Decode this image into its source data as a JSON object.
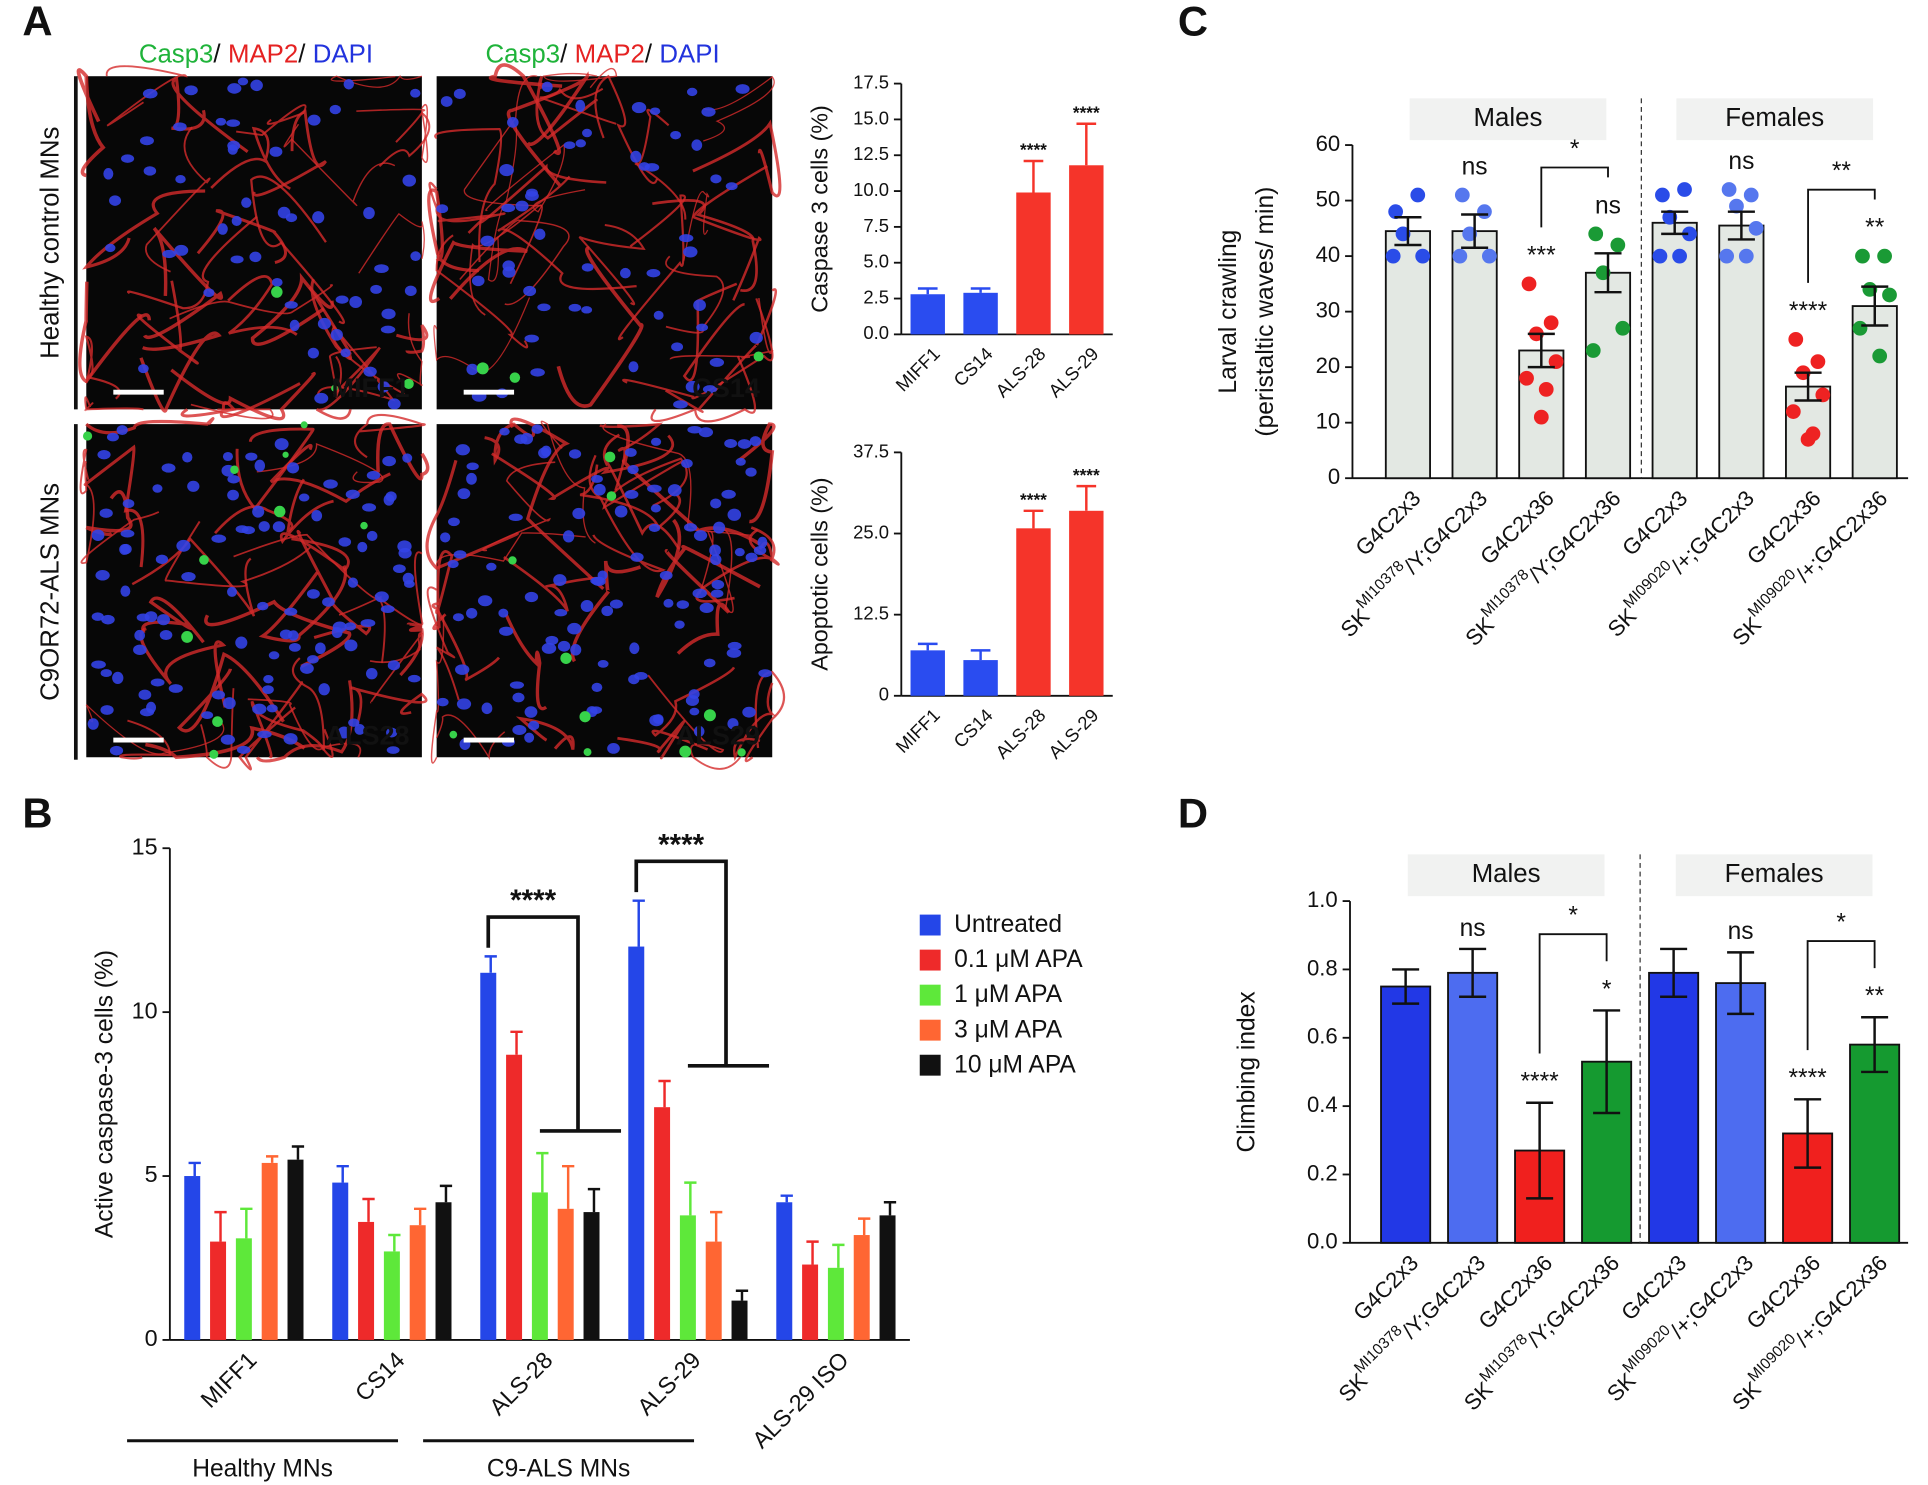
{
  "panel_labels": [
    "A",
    "B",
    "C",
    "D"
  ],
  "micrographs": {
    "stain_header": [
      {
        "text": "Casp3",
        "color": "#1fb33a"
      },
      {
        "text": "/",
        "color": "#111111"
      },
      {
        "text": "MAP2",
        "color": "#e52222"
      },
      {
        "text": "/",
        "color": "#111111"
      },
      {
        "text": "DAPI",
        "color": "#2233dd"
      }
    ],
    "rows": [
      "Healthy control MNs",
      "C9OR72-ALS MNs"
    ],
    "samples": [
      "MIFF1",
      "CS14",
      "ALS28",
      "ALS29"
    ]
  },
  "chart_data": [
    {
      "type": "bar",
      "y_label": "Caspase 3 cells (%)",
      "categories": [
        "MIFF1",
        "CS14",
        "ALS-28",
        "ALS-29"
      ],
      "values": [
        2.8,
        2.9,
        9.9,
        11.8
      ],
      "errors": [
        0.4,
        0.3,
        2.2,
        2.9
      ],
      "error_direction": "up",
      "colors": [
        "#2a4cf0",
        "#2a4cf0",
        "#f5342a",
        "#f5342a"
      ],
      "sig_labels": [
        null,
        null,
        "****",
        "****"
      ],
      "ylim": [
        0,
        17.5
      ],
      "yticks": [
        {
          "value": 0,
          "label": "0.0"
        },
        2.5,
        {
          "value": 5,
          "label": "5.0"
        },
        7.5,
        {
          "value": 10,
          "label": "10.0"
        },
        12.5,
        {
          "value": 15,
          "label": "15.0"
        },
        17.5
      ]
    },
    {
      "type": "bar",
      "y_label": "Apoptotic cells (%)",
      "categories": [
        "MIFF1",
        "CS14",
        "ALS-28",
        "ALS-29"
      ],
      "values": [
        7.0,
        5.5,
        25.8,
        28.5
      ],
      "errors": [
        1.0,
        1.5,
        2.7,
        3.8
      ],
      "error_direction": "up",
      "colors": [
        "#2a4cf0",
        "#2a4cf0",
        "#f5342a",
        "#f5342a"
      ],
      "sig_labels": [
        null,
        null,
        "****",
        "****"
      ],
      "ylim": [
        0,
        37.5
      ],
      "yticks": [
        0,
        12.5,
        {
          "value": 25,
          "label": "25.0"
        },
        37.5
      ]
    },
    {
      "type": "grouped_bar",
      "y_label": "Active caspase-3 cells (%)",
      "categories": [
        "MIFF1",
        "CS14",
        "ALS-28",
        "ALS-29",
        "ALS-29 ISO"
      ],
      "category_groups": [
        "Healthy MNs",
        "C9-ALS MNs"
      ],
      "series": [
        {
          "name": "Untreated",
          "color": "#2446e8",
          "values": [
            5.0,
            4.8,
            11.2,
            12.0,
            4.2
          ],
          "errors": [
            0.4,
            0.5,
            0.5,
            1.4,
            0.2
          ]
        },
        {
          "name": "0.1 μM APA",
          "color": "#ee2a2a",
          "values": [
            3.0,
            3.6,
            8.7,
            7.1,
            2.3
          ],
          "errors": [
            0.9,
            0.7,
            0.7,
            0.8,
            0.7
          ]
        },
        {
          "name": "1 μM APA",
          "color": "#5ee83a",
          "values": [
            3.1,
            2.7,
            4.5,
            3.8,
            2.2
          ],
          "errors": [
            0.9,
            0.5,
            1.2,
            1.0,
            0.7
          ]
        },
        {
          "name": "3 μM APA",
          "color": "#ff6633",
          "values": [
            5.4,
            3.5,
            4.0,
            3.0,
            3.2
          ],
          "errors": [
            0.2,
            0.5,
            1.3,
            0.9,
            0.5
          ]
        },
        {
          "name": "10 μM APA",
          "color": "#111111",
          "values": [
            5.5,
            4.2,
            3.9,
            1.2,
            3.8
          ],
          "errors": [
            0.4,
            0.5,
            0.7,
            0.3,
            0.4
          ]
        }
      ],
      "error_direction": "up",
      "sig_labels": [
        null,
        null,
        "****",
        "****",
        null
      ],
      "ylim": [
        0,
        15
      ],
      "yticks": [
        0,
        5,
        10,
        15
      ]
    },
    {
      "type": "bar_scatter",
      "y_label": [
        "Larval crawling",
        "(peristaltic waves/ min)"
      ],
      "groups": [
        "Males",
        "Females"
      ],
      "categories": [
        [
          "G4C2x3"
        ],
        [
          "SK",
          "MI10378",
          "/Y;G4C2x3"
        ],
        [
          "G4C2x36"
        ],
        [
          "SK",
          "MI10378",
          "/Y;G4C2x36"
        ],
        [
          "G4C2x3"
        ],
        [
          "SK",
          "MI09020",
          "/+;G4C2x3"
        ],
        [
          "G4C2x36"
        ],
        [
          "SK",
          "MI09020",
          "/+;G4C2x36"
        ]
      ],
      "values": [
        44.5,
        44.5,
        23,
        37,
        46,
        45.5,
        16.5,
        31
      ],
      "errors": [
        2.5,
        3,
        3,
        3.5,
        2,
        2.5,
        2.5,
        3.5
      ],
      "error_direction": "both",
      "colors": [
        "#e3e8e3",
        "#e3e8e3",
        "#e3e8e3",
        "#e3e8e3",
        "#e3e8e3",
        "#e3e8e3",
        "#e3e8e3",
        "#e3e8e3"
      ],
      "point_colors": [
        "#2a4ce8",
        "#5677ee",
        "#ee2222",
        "#1a9a35",
        "#2a4ce8",
        "#5677ee",
        "#ee2222",
        "#1a9a35"
      ],
      "points": [
        [
          48,
          51,
          44,
          40,
          40
        ],
        [
          51,
          48,
          44,
          40,
          40
        ],
        [
          35,
          28,
          26,
          21,
          18,
          16,
          11
        ],
        [
          44,
          42,
          37,
          27,
          23
        ],
        [
          51,
          52,
          47,
          44,
          40,
          40
        ],
        [
          52,
          51,
          49,
          45,
          40,
          40
        ],
        [
          25,
          21,
          19,
          15,
          12,
          8,
          7
        ],
        [
          40,
          40,
          34,
          33,
          27,
          22
        ]
      ],
      "sig_labels": [
        null,
        "ns",
        "***",
        "ns",
        null,
        "ns",
        "****",
        "**"
      ],
      "group_comparisons": [
        "*",
        "**"
      ],
      "ylim": [
        0,
        60
      ],
      "yticks": [
        0,
        10,
        20,
        30,
        40,
        50,
        60
      ]
    },
    {
      "type": "bar",
      "y_label": "Climbing index",
      "groups": [
        "Males",
        "Females"
      ],
      "categories": [
        [
          "G4C2x3"
        ],
        [
          "SK",
          "MI10378",
          "/Y;G4C2x3"
        ],
        [
          "G4C2x36"
        ],
        [
          "SK",
          "MI10378",
          "/Y;G4C2x36"
        ],
        [
          "G4C2x3"
        ],
        [
          "SK",
          "MI09020",
          "/+;G4C2x3"
        ],
        [
          "G4C2x36"
        ],
        [
          "SK",
          "MI09020",
          "/+;G4C2x36"
        ]
      ],
      "values": [
        0.75,
        0.79,
        0.27,
        0.53,
        0.79,
        0.76,
        0.32,
        0.58
      ],
      "errors": [
        0.05,
        0.07,
        0.14,
        0.15,
        0.07,
        0.09,
        0.1,
        0.08
      ],
      "error_direction": "both",
      "colors": [
        "#2238e6",
        "#4d6cf0",
        "#f0201e",
        "#159a30",
        "#2238e6",
        "#4d6cf0",
        "#f0201e",
        "#159a30"
      ],
      "sig_labels": [
        null,
        "ns",
        "****",
        "*",
        null,
        "ns",
        "****",
        "**"
      ],
      "group_comparisons": [
        "*",
        "*"
      ],
      "ylim": [
        0,
        1
      ],
      "yticks": [
        {
          "value": 0,
          "label": "0.0"
        },
        0.2,
        0.4,
        0.6,
        0.8,
        {
          "value": 1,
          "label": "1.0"
        }
      ]
    }
  ]
}
